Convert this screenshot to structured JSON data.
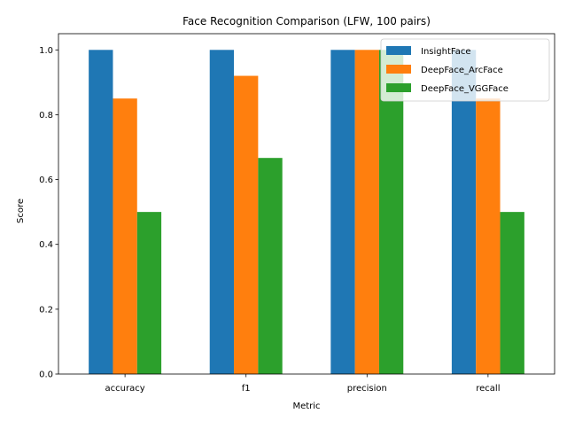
{
  "chart_data": {
    "type": "bar",
    "title": "Face Recognition Comparison (LFW, 100 pairs)",
    "xlabel": "Metric",
    "ylabel": "Score",
    "categories": [
      "accuracy",
      "f1",
      "precision",
      "recall"
    ],
    "series": [
      {
        "name": "InsightFace",
        "color": "#1f77b4",
        "values": [
          1.0,
          1.0,
          1.0,
          1.0
        ]
      },
      {
        "name": "DeepFace_ArcFace",
        "color": "#ff7f0e",
        "values": [
          0.85,
          0.92,
          1.0,
          0.85
        ]
      },
      {
        "name": "DeepFace_VGGFace",
        "color": "#2ca02c",
        "values": [
          0.5,
          0.6667,
          1.0,
          0.5
        ]
      }
    ],
    "ylim": [
      0,
      1.05
    ],
    "yticks": [
      "0.0",
      "0.2",
      "0.4",
      "0.6",
      "0.8",
      "1.0"
    ],
    "grid": false,
    "legend_position": "top-right"
  }
}
